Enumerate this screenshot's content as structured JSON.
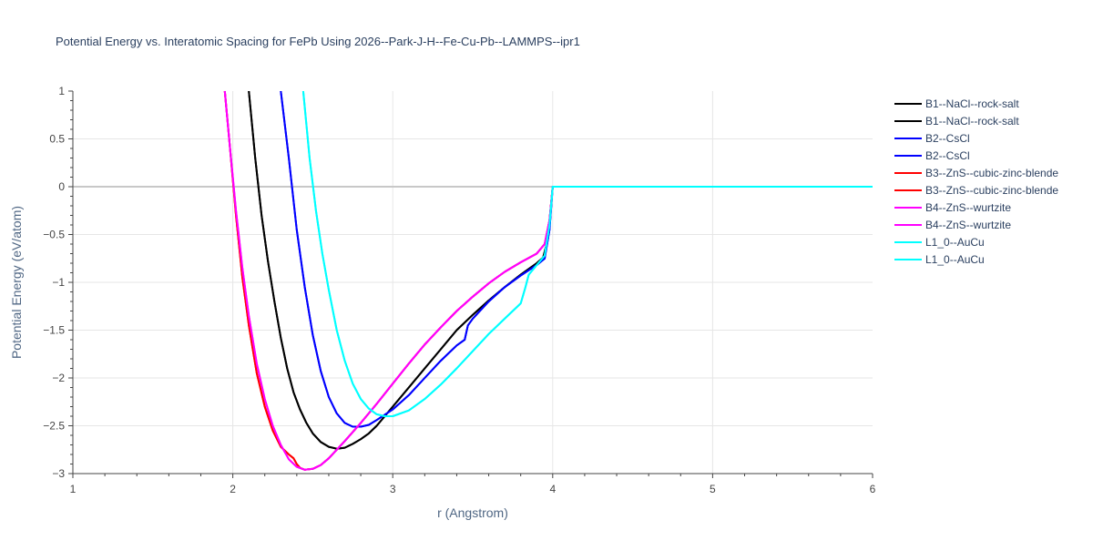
{
  "chart_data": {
    "type": "line",
    "title": "Potential Energy vs. Interatomic Spacing for FePb Using 2026--Park-J-H--Fe-Cu-Pb--LAMMPS--ipr1",
    "xlabel": "r (Angstrom)",
    "ylabel": "Potential Energy (eV/atom)",
    "xlim": [
      1,
      6
    ],
    "ylim": [
      -3,
      1
    ],
    "xticks": [
      1,
      2,
      3,
      4,
      5,
      6
    ],
    "xtick_labels": [
      "1",
      "2",
      "3",
      "4",
      "5",
      "6"
    ],
    "yticks": [
      1,
      0.5,
      0,
      -0.5,
      -1,
      -1.5,
      -2,
      -2.5,
      -3
    ],
    "ytick_labels": [
      "1",
      "0.5",
      "0",
      "−0.5",
      "−1",
      "−1.5",
      "−2",
      "−2.5",
      "−3"
    ],
    "grid": true,
    "legend_position": "right",
    "series": [
      {
        "name": "B1--NaCl--rock-salt",
        "color": "#000000",
        "x": [
          2.1,
          2.14,
          2.18,
          2.22,
          2.26,
          2.3,
          2.34,
          2.38,
          2.42,
          2.46,
          2.5,
          2.55,
          2.6,
          2.65,
          2.7,
          2.75,
          2.8,
          2.85,
          2.9,
          3.0,
          3.1,
          3.2,
          3.3,
          3.4,
          3.5,
          3.6,
          3.7,
          3.8,
          3.9,
          3.94,
          3.97,
          4.0,
          4.1,
          4.5,
          5.0,
          5.5,
          6.0
        ],
        "y": [
          1.0,
          0.3,
          -0.3,
          -0.78,
          -1.2,
          -1.58,
          -1.9,
          -2.15,
          -2.33,
          -2.47,
          -2.58,
          -2.67,
          -2.72,
          -2.74,
          -2.73,
          -2.69,
          -2.64,
          -2.58,
          -2.5,
          -2.3,
          -2.1,
          -1.9,
          -1.7,
          -1.5,
          -1.34,
          -1.19,
          -1.05,
          -0.92,
          -0.8,
          -0.74,
          -0.55,
          0.0,
          0.0,
          0.0,
          0.0,
          0.0,
          0.0
        ]
      },
      {
        "name": "B1--NaCl--rock-salt",
        "color": "#000000",
        "x": [
          2.1,
          2.14,
          2.18,
          2.22,
          2.26,
          2.3,
          2.34,
          2.38,
          2.42,
          2.46,
          2.5,
          2.55,
          2.6,
          2.65,
          2.7,
          2.75,
          2.8,
          2.85,
          2.9,
          3.0,
          3.1,
          3.2,
          3.3,
          3.4,
          3.5,
          3.6,
          3.7,
          3.8,
          3.9,
          3.94,
          3.97,
          4.0,
          4.1,
          4.5,
          5.0,
          5.5,
          6.0
        ],
        "y": [
          1.0,
          0.3,
          -0.3,
          -0.78,
          -1.2,
          -1.58,
          -1.9,
          -2.15,
          -2.33,
          -2.47,
          -2.58,
          -2.67,
          -2.72,
          -2.74,
          -2.73,
          -2.69,
          -2.64,
          -2.58,
          -2.5,
          -2.3,
          -2.1,
          -1.9,
          -1.7,
          -1.5,
          -1.34,
          -1.19,
          -1.05,
          -0.92,
          -0.8,
          -0.74,
          -0.55,
          0.0,
          0.0,
          0.0,
          0.0,
          0.0,
          0.0
        ]
      },
      {
        "name": "B2--CsCl",
        "color": "#0000ff",
        "x": [
          2.3,
          2.35,
          2.4,
          2.45,
          2.5,
          2.55,
          2.6,
          2.65,
          2.7,
          2.75,
          2.8,
          2.85,
          2.9,
          3.0,
          3.1,
          3.2,
          3.3,
          3.4,
          3.45,
          3.47,
          3.5,
          3.6,
          3.7,
          3.8,
          3.9,
          3.95,
          3.98,
          4.0,
          4.5,
          5.0,
          5.5,
          6.0
        ],
        "y": [
          1.0,
          0.3,
          -0.45,
          -1.05,
          -1.55,
          -1.93,
          -2.2,
          -2.37,
          -2.47,
          -2.51,
          -2.51,
          -2.49,
          -2.44,
          -2.33,
          -2.18,
          -2.0,
          -1.82,
          -1.66,
          -1.6,
          -1.45,
          -1.38,
          -1.2,
          -1.05,
          -0.93,
          -0.82,
          -0.75,
          -0.45,
          0.0,
          0.0,
          0.0,
          0.0,
          0.0
        ]
      },
      {
        "name": "B2--CsCl",
        "color": "#0000ff",
        "x": [
          2.3,
          2.35,
          2.4,
          2.45,
          2.5,
          2.55,
          2.6,
          2.65,
          2.7,
          2.75,
          2.8,
          2.85,
          2.9,
          3.0,
          3.1,
          3.2,
          3.3,
          3.4,
          3.45,
          3.47,
          3.5,
          3.6,
          3.7,
          3.8,
          3.9,
          3.95,
          3.98,
          4.0,
          4.5,
          5.0,
          5.5,
          6.0
        ],
        "y": [
          1.0,
          0.3,
          -0.45,
          -1.05,
          -1.55,
          -1.93,
          -2.2,
          -2.37,
          -2.47,
          -2.51,
          -2.51,
          -2.49,
          -2.44,
          -2.33,
          -2.18,
          -2.0,
          -1.82,
          -1.66,
          -1.6,
          -1.45,
          -1.38,
          -1.2,
          -1.05,
          -0.93,
          -0.82,
          -0.75,
          -0.45,
          0.0,
          0.0,
          0.0,
          0.0,
          0.0
        ]
      },
      {
        "name": "B3--ZnS--cubic-zinc-blende",
        "color": "#ff0000",
        "x": [
          1.95,
          1.98,
          2.02,
          2.06,
          2.1,
          2.15,
          2.2,
          2.25,
          2.3,
          2.35,
          2.38,
          2.4,
          2.42,
          2.45,
          2.5,
          2.55,
          2.6,
          2.7,
          2.8,
          2.9,
          3.0,
          3.1,
          3.2,
          3.3,
          3.4,
          3.5,
          3.6,
          3.7,
          3.8,
          3.9,
          3.95,
          3.98,
          4.0,
          4.5,
          5.0,
          5.5,
          6.0
        ],
        "y": [
          1.0,
          0.45,
          -0.3,
          -0.95,
          -1.45,
          -1.95,
          -2.3,
          -2.55,
          -2.72,
          -2.8,
          -2.84,
          -2.9,
          -2.94,
          -2.96,
          -2.95,
          -2.91,
          -2.84,
          -2.66,
          -2.47,
          -2.27,
          -2.06,
          -1.85,
          -1.65,
          -1.47,
          -1.3,
          -1.15,
          -1.01,
          -0.89,
          -0.79,
          -0.7,
          -0.6,
          -0.35,
          0.0,
          0.0,
          0.0,
          0.0,
          0.0
        ]
      },
      {
        "name": "B3--ZnS--cubic-zinc-blende",
        "color": "#ff0000",
        "x": [
          1.95,
          1.98,
          2.02,
          2.06,
          2.1,
          2.15,
          2.2,
          2.25,
          2.3,
          2.35,
          2.38,
          2.4,
          2.42,
          2.45,
          2.5,
          2.55,
          2.6,
          2.7,
          2.8,
          2.9,
          3.0,
          3.1,
          3.2,
          3.3,
          3.4,
          3.5,
          3.6,
          3.7,
          3.8,
          3.9,
          3.95,
          3.98,
          4.0,
          4.5,
          5.0,
          5.5,
          6.0
        ],
        "y": [
          1.0,
          0.45,
          -0.3,
          -0.95,
          -1.45,
          -1.95,
          -2.3,
          -2.55,
          -2.72,
          -2.8,
          -2.84,
          -2.9,
          -2.94,
          -2.96,
          -2.95,
          -2.91,
          -2.84,
          -2.66,
          -2.47,
          -2.27,
          -2.06,
          -1.85,
          -1.65,
          -1.47,
          -1.3,
          -1.15,
          -1.01,
          -0.89,
          -0.79,
          -0.7,
          -0.6,
          -0.35,
          0.0,
          0.0,
          0.0,
          0.0,
          0.0
        ]
      },
      {
        "name": "B4--ZnS--wurtzite",
        "color": "#ff00ff",
        "x": [
          1.95,
          1.98,
          2.02,
          2.06,
          2.1,
          2.15,
          2.2,
          2.25,
          2.3,
          2.35,
          2.4,
          2.45,
          2.5,
          2.55,
          2.6,
          2.7,
          2.8,
          2.9,
          3.0,
          3.1,
          3.2,
          3.3,
          3.4,
          3.5,
          3.6,
          3.7,
          3.8,
          3.9,
          3.95,
          3.98,
          4.0,
          4.5,
          5.0,
          5.5,
          6.0
        ],
        "y": [
          1.0,
          0.45,
          -0.25,
          -0.85,
          -1.35,
          -1.85,
          -2.22,
          -2.5,
          -2.7,
          -2.85,
          -2.93,
          -2.96,
          -2.95,
          -2.91,
          -2.84,
          -2.66,
          -2.47,
          -2.27,
          -2.06,
          -1.85,
          -1.65,
          -1.47,
          -1.3,
          -1.15,
          -1.01,
          -0.89,
          -0.79,
          -0.7,
          -0.6,
          -0.35,
          0.0,
          0.0,
          0.0,
          0.0,
          0.0
        ]
      },
      {
        "name": "B4--ZnS--wurtzite",
        "color": "#ff00ff",
        "x": [
          1.95,
          1.98,
          2.02,
          2.06,
          2.1,
          2.15,
          2.2,
          2.25,
          2.3,
          2.35,
          2.4,
          2.45,
          2.5,
          2.55,
          2.6,
          2.7,
          2.8,
          2.9,
          3.0,
          3.1,
          3.2,
          3.3,
          3.4,
          3.5,
          3.6,
          3.7,
          3.8,
          3.9,
          3.95,
          3.98,
          4.0,
          4.5,
          5.0,
          5.5,
          6.0
        ],
        "y": [
          1.0,
          0.45,
          -0.25,
          -0.85,
          -1.35,
          -1.85,
          -2.22,
          -2.5,
          -2.7,
          -2.85,
          -2.93,
          -2.96,
          -2.95,
          -2.91,
          -2.84,
          -2.66,
          -2.47,
          -2.27,
          -2.06,
          -1.85,
          -1.65,
          -1.47,
          -1.3,
          -1.15,
          -1.01,
          -0.89,
          -0.79,
          -0.7,
          -0.6,
          -0.35,
          0.0,
          0.0,
          0.0,
          0.0,
          0.0
        ]
      },
      {
        "name": "L1_0--AuCu",
        "color": "#00ffff",
        "x": [
          2.44,
          2.48,
          2.52,
          2.56,
          2.6,
          2.65,
          2.7,
          2.75,
          2.8,
          2.85,
          2.9,
          2.95,
          3.0,
          3.1,
          3.2,
          3.3,
          3.4,
          3.5,
          3.6,
          3.7,
          3.8,
          3.83,
          3.85,
          3.9,
          3.95,
          3.98,
          4.0,
          4.5,
          5.0,
          5.5,
          6.0
        ],
        "y": [
          1.0,
          0.3,
          -0.25,
          -0.7,
          -1.08,
          -1.5,
          -1.82,
          -2.06,
          -2.22,
          -2.32,
          -2.38,
          -2.4,
          -2.4,
          -2.34,
          -2.22,
          -2.07,
          -1.9,
          -1.72,
          -1.54,
          -1.38,
          -1.22,
          -1.05,
          -0.92,
          -0.82,
          -0.72,
          -0.4,
          0.0,
          0.0,
          0.0,
          0.0,
          0.0
        ]
      },
      {
        "name": "L1_0--AuCu",
        "color": "#00ffff",
        "x": [
          2.44,
          2.48,
          2.52,
          2.56,
          2.6,
          2.65,
          2.7,
          2.75,
          2.8,
          2.85,
          2.9,
          2.95,
          3.0,
          3.1,
          3.2,
          3.3,
          3.4,
          3.5,
          3.6,
          3.7,
          3.8,
          3.83,
          3.85,
          3.9,
          3.95,
          3.98,
          4.0,
          4.5,
          5.0,
          5.5,
          6.0
        ],
        "y": [
          1.0,
          0.3,
          -0.25,
          -0.7,
          -1.08,
          -1.5,
          -1.82,
          -2.06,
          -2.22,
          -2.32,
          -2.38,
          -2.4,
          -2.4,
          -2.34,
          -2.22,
          -2.07,
          -1.9,
          -1.72,
          -1.54,
          -1.38,
          -1.22,
          -1.05,
          -0.92,
          -0.82,
          -0.72,
          -0.4,
          0.0,
          0.0,
          0.0,
          0.0,
          0.0
        ]
      }
    ]
  }
}
